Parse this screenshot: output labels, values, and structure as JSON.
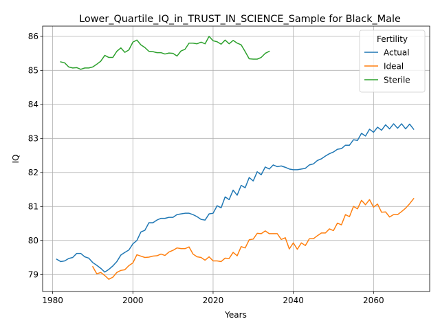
{
  "chart_data": {
    "type": "line",
    "title": "Lower_Quartile_IQ_in_TRUST_IN_SCIENCE_Sample for Black_Male",
    "xlabel": "Years",
    "ylabel": "IQ",
    "xlim": [
      1977.5,
      2074
    ],
    "ylim": [
      78.5,
      86.3
    ],
    "xticks": [
      1980,
      2000,
      2020,
      2040,
      2060
    ],
    "yticks": [
      79,
      80,
      81,
      82,
      83,
      84,
      85,
      86
    ],
    "grid": true,
    "legend": {
      "title": "Fertility",
      "placement": "top-right"
    },
    "series": [
      {
        "name": "Actual",
        "color": "#1f77b4",
        "x": [
          1981,
          1982,
          1983,
          1984,
          1985,
          1986,
          1987,
          1988,
          1989,
          1990,
          1991,
          1992,
          1993,
          1994,
          1995,
          1996,
          1997,
          1998,
          1999,
          2000,
          2001,
          2002,
          2003,
          2004,
          2005,
          2006,
          2007,
          2008,
          2009,
          2010,
          2011,
          2012,
          2013,
          2014,
          2015,
          2016,
          2017,
          2018,
          2019,
          2020,
          2021,
          2022,
          2023,
          2024,
          2025,
          2026,
          2027,
          2028,
          2029,
          2030,
          2031,
          2032,
          2033,
          2034,
          2035,
          2036,
          2037,
          2038,
          2039,
          2040,
          2041,
          2042,
          2043,
          2044,
          2045,
          2046,
          2047,
          2048,
          2049,
          2050,
          2051,
          2052,
          2053,
          2054,
          2055,
          2056,
          2057,
          2058,
          2059,
          2060,
          2061,
          2062,
          2063,
          2064,
          2065,
          2066,
          2067,
          2068,
          2069,
          2070
        ],
        "y": [
          79.45,
          79.38,
          79.4,
          79.47,
          79.5,
          79.62,
          79.62,
          79.52,
          79.48,
          79.35,
          79.27,
          79.18,
          79.07,
          79.15,
          79.25,
          79.38,
          79.57,
          79.65,
          79.72,
          79.9,
          80.0,
          80.25,
          80.3,
          80.52,
          80.52,
          80.6,
          80.65,
          80.65,
          80.68,
          80.68,
          80.76,
          80.78,
          80.8,
          80.8,
          80.76,
          80.7,
          80.62,
          80.6,
          80.78,
          80.8,
          81.02,
          80.96,
          81.28,
          81.2,
          81.48,
          81.33,
          81.62,
          81.55,
          81.85,
          81.75,
          82.02,
          81.93,
          82.16,
          82.1,
          82.22,
          82.17,
          82.19,
          82.15,
          82.1,
          82.08,
          82.08,
          82.1,
          82.12,
          82.22,
          82.25,
          82.35,
          82.4,
          82.48,
          82.55,
          82.6,
          82.68,
          82.7,
          82.8,
          82.8,
          82.96,
          82.94,
          83.15,
          83.07,
          83.27,
          83.18,
          83.33,
          83.24,
          83.4,
          83.28,
          83.43,
          83.3,
          83.43,
          83.28,
          83.42,
          83.27
        ]
      },
      {
        "name": "Ideal",
        "color": "#ff7f0e",
        "x": [
          1990,
          1991,
          1992,
          1993,
          1994,
          1995,
          1996,
          1997,
          1998,
          1999,
          2000,
          2001,
          2002,
          2003,
          2004,
          2005,
          2006,
          2007,
          2008,
          2009,
          2010,
          2011,
          2012,
          2013,
          2014,
          2015,
          2016,
          2017,
          2018,
          2019,
          2020,
          2021,
          2022,
          2023,
          2024,
          2025,
          2026,
          2027,
          2028,
          2029,
          2030,
          2031,
          2032,
          2033,
          2034,
          2035,
          2036,
          2037,
          2038,
          2039,
          2040,
          2041,
          2042,
          2043,
          2044,
          2045,
          2046,
          2047,
          2048,
          2049,
          2050,
          2051,
          2052,
          2053,
          2054,
          2055,
          2056,
          2057,
          2058,
          2059,
          2060,
          2061,
          2062,
          2063,
          2064,
          2065,
          2066,
          2067,
          2068,
          2069,
          2070
        ],
        "y": [
          79.23,
          79.02,
          79.06,
          78.97,
          78.86,
          78.92,
          79.06,
          79.12,
          79.14,
          79.26,
          79.34,
          79.58,
          79.54,
          79.5,
          79.51,
          79.54,
          79.55,
          79.6,
          79.56,
          79.66,
          79.71,
          79.78,
          79.76,
          79.76,
          79.81,
          79.6,
          79.52,
          79.5,
          79.42,
          79.52,
          79.4,
          79.4,
          79.38,
          79.48,
          79.47,
          79.65,
          79.55,
          79.82,
          79.78,
          80.02,
          80.04,
          80.21,
          80.2,
          80.28,
          80.2,
          80.2,
          80.2,
          80.03,
          80.08,
          79.75,
          79.93,
          79.74,
          79.93,
          79.85,
          80.05,
          80.05,
          80.14,
          80.22,
          80.22,
          80.34,
          80.29,
          80.51,
          80.46,
          80.76,
          80.7,
          81.0,
          80.93,
          81.18,
          81.05,
          81.2,
          80.98,
          81.07,
          80.83,
          80.84,
          80.69,
          80.76,
          80.76,
          80.85,
          80.95,
          81.08,
          81.23
        ]
      },
      {
        "name": "Sterile",
        "color": "#2ca02c",
        "x": [
          1982,
          1983,
          1984,
          1985,
          1986,
          1987,
          1988,
          1989,
          1990,
          1991,
          1992,
          1993,
          1994,
          1995,
          1996,
          1997,
          1998,
          1999,
          2000,
          2001,
          2002,
          2003,
          2004,
          2005,
          2006,
          2007,
          2008,
          2009,
          2010,
          2011,
          2012,
          2013,
          2014,
          2015,
          2016,
          2017,
          2018,
          2019,
          2020,
          2021,
          2022,
          2023,
          2024,
          2025,
          2026,
          2027,
          2028,
          2029,
          2030,
          2031,
          2032,
          2033,
          2034
        ],
        "y": [
          85.25,
          85.22,
          85.1,
          85.07,
          85.08,
          85.03,
          85.07,
          85.07,
          85.1,
          85.18,
          85.27,
          85.44,
          85.38,
          85.38,
          85.56,
          85.66,
          85.53,
          85.6,
          85.83,
          85.89,
          85.75,
          85.67,
          85.56,
          85.55,
          85.52,
          85.52,
          85.48,
          85.51,
          85.5,
          85.42,
          85.57,
          85.62,
          85.8,
          85.8,
          85.78,
          85.83,
          85.78,
          86.0,
          85.87,
          85.84,
          85.77,
          85.89,
          85.78,
          85.88,
          85.8,
          85.75,
          85.55,
          85.34,
          85.33,
          85.33,
          85.38,
          85.5,
          85.56
        ]
      }
    ]
  }
}
